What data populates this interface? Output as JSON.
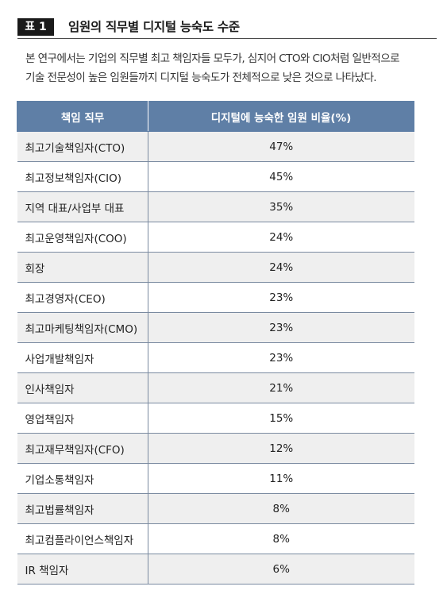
{
  "header": {
    "badge": "표 1",
    "title": "임원의 직무별 디지털 능숙도 수준"
  },
  "description": {
    "line1": "본 연구에서는 기업의 직무별 최고 책임자들 모두가, 심지어 CTO와 CIO처럼 일반적으로",
    "line2": "기술 전문성이 높은 임원들까지 디지털 능숙도가 전체적으로 낮은 것으로 나타났다."
  },
  "table": {
    "headers": [
      "책임 직무",
      "디지털에 능숙한 임원 비율(%)"
    ],
    "rows": [
      {
        "role": "최고기술책임자(CTO)",
        "pct": "47%"
      },
      {
        "role": "최고정보책임자(CIO)",
        "pct": "45%"
      },
      {
        "role": "지역 대표/사업부 대표",
        "pct": "35%"
      },
      {
        "role": "최고운영책임자(COO)",
        "pct": "24%"
      },
      {
        "role": "회장",
        "pct": "24%"
      },
      {
        "role": "최고경영자(CEO)",
        "pct": "23%"
      },
      {
        "role": "최고마케팅책임자(CMO)",
        "pct": "23%"
      },
      {
        "role": "사업개발책임자",
        "pct": "23%"
      },
      {
        "role": "인사책임자",
        "pct": "21%"
      },
      {
        "role": "영업책임자",
        "pct": "15%"
      },
      {
        "role": "최고재무책임자(CFO)",
        "pct": "12%"
      },
      {
        "role": "기업소통책임자",
        "pct": "11%"
      },
      {
        "role": "최고법률책임자",
        "pct": "8%"
      },
      {
        "role": "최고컴플라이언스책임자",
        "pct": "8%"
      },
      {
        "role": "IR 책임자",
        "pct": "6%"
      }
    ]
  }
}
